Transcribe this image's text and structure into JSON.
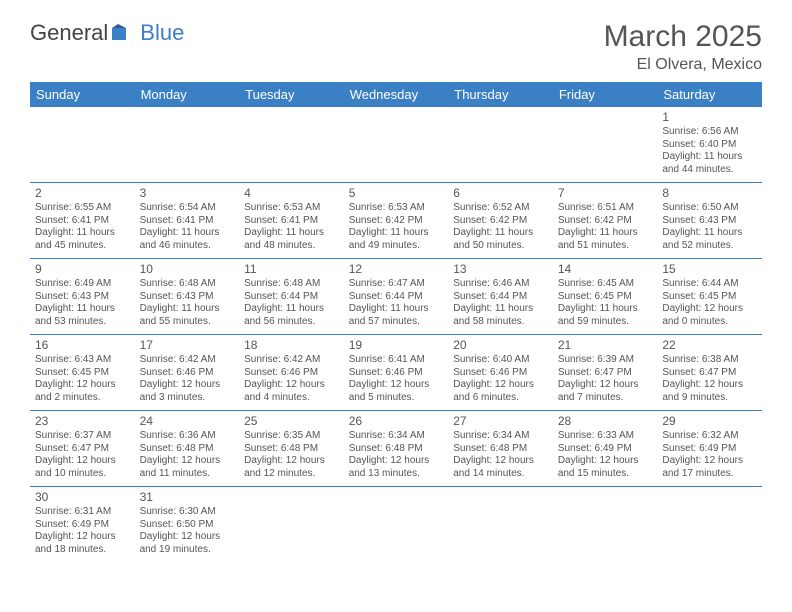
{
  "logo": {
    "text1": "General",
    "text2": "Blue"
  },
  "title": "March 2025",
  "location": "El Olvera, Mexico",
  "dayHeaders": [
    "Sunday",
    "Monday",
    "Tuesday",
    "Wednesday",
    "Thursday",
    "Friday",
    "Saturday"
  ],
  "colors": {
    "headerBg": "#3b7fc4",
    "headerText": "#ffffff",
    "bodyText": "#555555",
    "ruleColor": "#3b7fc4"
  },
  "weeks": [
    [
      null,
      null,
      null,
      null,
      null,
      null,
      {
        "n": "1",
        "sr": "Sunrise: 6:56 AM",
        "ss": "Sunset: 6:40 PM",
        "dl": "Daylight: 11 hours and 44 minutes."
      }
    ],
    [
      {
        "n": "2",
        "sr": "Sunrise: 6:55 AM",
        "ss": "Sunset: 6:41 PM",
        "dl": "Daylight: 11 hours and 45 minutes."
      },
      {
        "n": "3",
        "sr": "Sunrise: 6:54 AM",
        "ss": "Sunset: 6:41 PM",
        "dl": "Daylight: 11 hours and 46 minutes."
      },
      {
        "n": "4",
        "sr": "Sunrise: 6:53 AM",
        "ss": "Sunset: 6:41 PM",
        "dl": "Daylight: 11 hours and 48 minutes."
      },
      {
        "n": "5",
        "sr": "Sunrise: 6:53 AM",
        "ss": "Sunset: 6:42 PM",
        "dl": "Daylight: 11 hours and 49 minutes."
      },
      {
        "n": "6",
        "sr": "Sunrise: 6:52 AM",
        "ss": "Sunset: 6:42 PM",
        "dl": "Daylight: 11 hours and 50 minutes."
      },
      {
        "n": "7",
        "sr": "Sunrise: 6:51 AM",
        "ss": "Sunset: 6:42 PM",
        "dl": "Daylight: 11 hours and 51 minutes."
      },
      {
        "n": "8",
        "sr": "Sunrise: 6:50 AM",
        "ss": "Sunset: 6:43 PM",
        "dl": "Daylight: 11 hours and 52 minutes."
      }
    ],
    [
      {
        "n": "9",
        "sr": "Sunrise: 6:49 AM",
        "ss": "Sunset: 6:43 PM",
        "dl": "Daylight: 11 hours and 53 minutes."
      },
      {
        "n": "10",
        "sr": "Sunrise: 6:48 AM",
        "ss": "Sunset: 6:43 PM",
        "dl": "Daylight: 11 hours and 55 minutes."
      },
      {
        "n": "11",
        "sr": "Sunrise: 6:48 AM",
        "ss": "Sunset: 6:44 PM",
        "dl": "Daylight: 11 hours and 56 minutes."
      },
      {
        "n": "12",
        "sr": "Sunrise: 6:47 AM",
        "ss": "Sunset: 6:44 PM",
        "dl": "Daylight: 11 hours and 57 minutes."
      },
      {
        "n": "13",
        "sr": "Sunrise: 6:46 AM",
        "ss": "Sunset: 6:44 PM",
        "dl": "Daylight: 11 hours and 58 minutes."
      },
      {
        "n": "14",
        "sr": "Sunrise: 6:45 AM",
        "ss": "Sunset: 6:45 PM",
        "dl": "Daylight: 11 hours and 59 minutes."
      },
      {
        "n": "15",
        "sr": "Sunrise: 6:44 AM",
        "ss": "Sunset: 6:45 PM",
        "dl": "Daylight: 12 hours and 0 minutes."
      }
    ],
    [
      {
        "n": "16",
        "sr": "Sunrise: 6:43 AM",
        "ss": "Sunset: 6:45 PM",
        "dl": "Daylight: 12 hours and 2 minutes."
      },
      {
        "n": "17",
        "sr": "Sunrise: 6:42 AM",
        "ss": "Sunset: 6:46 PM",
        "dl": "Daylight: 12 hours and 3 minutes."
      },
      {
        "n": "18",
        "sr": "Sunrise: 6:42 AM",
        "ss": "Sunset: 6:46 PM",
        "dl": "Daylight: 12 hours and 4 minutes."
      },
      {
        "n": "19",
        "sr": "Sunrise: 6:41 AM",
        "ss": "Sunset: 6:46 PM",
        "dl": "Daylight: 12 hours and 5 minutes."
      },
      {
        "n": "20",
        "sr": "Sunrise: 6:40 AM",
        "ss": "Sunset: 6:46 PM",
        "dl": "Daylight: 12 hours and 6 minutes."
      },
      {
        "n": "21",
        "sr": "Sunrise: 6:39 AM",
        "ss": "Sunset: 6:47 PM",
        "dl": "Daylight: 12 hours and 7 minutes."
      },
      {
        "n": "22",
        "sr": "Sunrise: 6:38 AM",
        "ss": "Sunset: 6:47 PM",
        "dl": "Daylight: 12 hours and 9 minutes."
      }
    ],
    [
      {
        "n": "23",
        "sr": "Sunrise: 6:37 AM",
        "ss": "Sunset: 6:47 PM",
        "dl": "Daylight: 12 hours and 10 minutes."
      },
      {
        "n": "24",
        "sr": "Sunrise: 6:36 AM",
        "ss": "Sunset: 6:48 PM",
        "dl": "Daylight: 12 hours and 11 minutes."
      },
      {
        "n": "25",
        "sr": "Sunrise: 6:35 AM",
        "ss": "Sunset: 6:48 PM",
        "dl": "Daylight: 12 hours and 12 minutes."
      },
      {
        "n": "26",
        "sr": "Sunrise: 6:34 AM",
        "ss": "Sunset: 6:48 PM",
        "dl": "Daylight: 12 hours and 13 minutes."
      },
      {
        "n": "27",
        "sr": "Sunrise: 6:34 AM",
        "ss": "Sunset: 6:48 PM",
        "dl": "Daylight: 12 hours and 14 minutes."
      },
      {
        "n": "28",
        "sr": "Sunrise: 6:33 AM",
        "ss": "Sunset: 6:49 PM",
        "dl": "Daylight: 12 hours and 15 minutes."
      },
      {
        "n": "29",
        "sr": "Sunrise: 6:32 AM",
        "ss": "Sunset: 6:49 PM",
        "dl": "Daylight: 12 hours and 17 minutes."
      }
    ],
    [
      {
        "n": "30",
        "sr": "Sunrise: 6:31 AM",
        "ss": "Sunset: 6:49 PM",
        "dl": "Daylight: 12 hours and 18 minutes."
      },
      {
        "n": "31",
        "sr": "Sunrise: 6:30 AM",
        "ss": "Sunset: 6:50 PM",
        "dl": "Daylight: 12 hours and 19 minutes."
      },
      null,
      null,
      null,
      null,
      null
    ]
  ]
}
